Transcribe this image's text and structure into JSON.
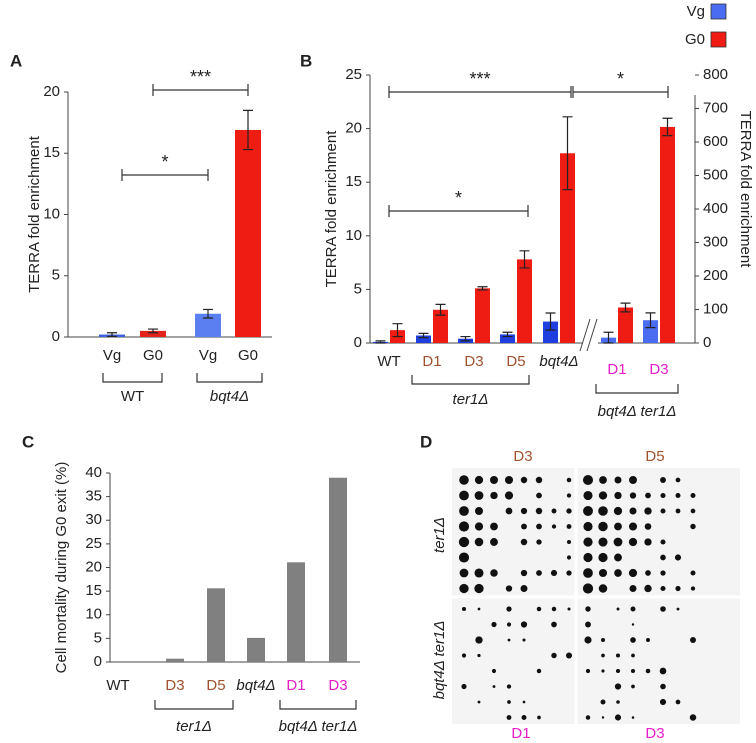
{
  "chart_data": [
    {
      "panel": "A",
      "type": "bar",
      "ylabel": "TERRA fold enrichment",
      "categories": [
        "Vg",
        "G0",
        "Vg",
        "G0"
      ],
      "values": [
        0.2,
        0.5,
        1.9,
        16.9
      ],
      "errors": [
        0.15,
        0.15,
        0.35,
        1.6
      ],
      "colors": [
        "#3f5fe0",
        "#e3241b",
        "#5b7ff0",
        "#ee1c12"
      ],
      "groups": [
        "WT",
        "bqt4Δ"
      ],
      "annotations": [
        "*",
        "***"
      ],
      "ylim": [
        0,
        20
      ],
      "yticks": [
        0,
        5,
        10,
        15,
        20
      ]
    },
    {
      "panel": "B",
      "type": "bar",
      "ylabel": "TERRA fold enrichment",
      "y2label": "TERRA fold enrichment",
      "categories": [
        "WT",
        "D1",
        "D3",
        "D5",
        "bqt4Δ",
        "D1",
        "D3"
      ],
      "category_colors": [
        "#222222",
        "#a0522d",
        "#a0522d",
        "#a0522d",
        "#222222",
        "#e61ec8",
        "#e61ec8"
      ],
      "series": [
        {
          "name": "Vg",
          "color": "#1f3fe0",
          "values": [
            0.1,
            0.7,
            0.4,
            0.8,
            2.0,
            null,
            null
          ],
          "errors": [
            0.1,
            0.2,
            0.2,
            0.2,
            0.8,
            null,
            null
          ]
        },
        {
          "name": "G0",
          "color": "#ee1c12",
          "values": [
            1.2,
            3.1,
            5.1,
            7.8,
            17.7,
            null,
            null
          ],
          "errors": [
            0.6,
            0.5,
            0.15,
            0.8,
            3.4,
            null,
            null
          ]
        },
        {
          "color": "#4a6cf0",
          "axis": "y2",
          "values": [
            null,
            null,
            null,
            null,
            null,
            16,
            68
          ],
          "errors": [
            null,
            null,
            null,
            null,
            null,
            16,
            22
          ]
        },
        {
          "color": "#ee1c12",
          "axis": "y2",
          "values": [
            null,
            null,
            null,
            null,
            null,
            106,
            645
          ],
          "errors": [
            null,
            null,
            null,
            null,
            null,
            13,
            26
          ]
        }
      ],
      "legend_colors": [
        "#4a6cf0",
        "#ee1c12"
      ],
      "groups": [
        "ter1Δ",
        "bqt4Δ ter1Δ"
      ],
      "annotations": [
        "***",
        "*",
        "*"
      ],
      "ylim": [
        0,
        25
      ],
      "yticks": [
        0,
        5,
        10,
        15,
        20,
        25
      ],
      "y2lim": [
        0,
        800
      ],
      "y2ticks": [
        0,
        100,
        200,
        300,
        400,
        500,
        600,
        700,
        800
      ]
    },
    {
      "panel": "C",
      "type": "bar",
      "ylabel": "Cell mortality during G0 exit (%)",
      "categories": [
        "WT",
        "D3",
        "D5",
        "bqt4Δ",
        "D1",
        "D3"
      ],
      "category_colors": [
        "#222222",
        "#a0522d",
        "#a0522d",
        "#222222",
        "#e61ec8",
        "#e61ec8"
      ],
      "values": [
        0,
        0.7,
        15.6,
        5.1,
        21.1,
        39
      ],
      "color": "#808080",
      "groups": [
        "ter1Δ",
        "bqt4Δ ter1Δ"
      ],
      "ylim": [
        0,
        40
      ],
      "yticks": [
        0,
        5,
        10,
        15,
        20,
        25,
        30,
        35,
        40
      ]
    }
  ],
  "panel_d": {
    "panel": "D",
    "top_labels": [
      "D3",
      "D5"
    ],
    "bottom_labels": [
      "D1",
      "D3"
    ],
    "row_labels": [
      "ter1Δ",
      "bqt4Δ ter1Δ"
    ]
  }
}
